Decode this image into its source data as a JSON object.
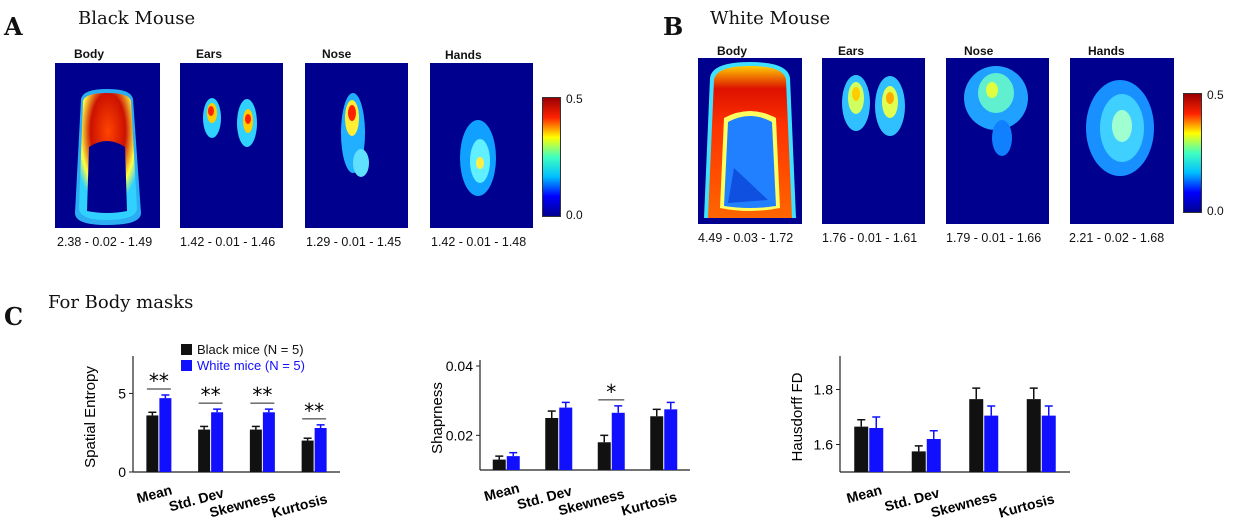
{
  "panels": {
    "A": {
      "letter": "A",
      "title": "Black Mouse",
      "maps": [
        {
          "label": "Body",
          "stats": "2.38 - 0.02 - 1.49"
        },
        {
          "label": "Ears",
          "stats": "1.42 - 0.01 - 1.46"
        },
        {
          "label": "Nose",
          "stats": "1.29 - 0.01 - 1.45"
        },
        {
          "label": "Hands",
          "stats": "1.42 - 0.01 - 1.48"
        }
      ],
      "colorbar": {
        "max": "0.5",
        "min": "0.0"
      }
    },
    "B": {
      "letter": "B",
      "title": "White Mouse",
      "maps": [
        {
          "label": "Body",
          "stats": "4.49 - 0.03 - 1.72"
        },
        {
          "label": "Ears",
          "stats": "1.76 - 0.01 - 1.61"
        },
        {
          "label": "Nose",
          "stats": "1.79 - 0.01 - 1.66"
        },
        {
          "label": "Hands",
          "stats": "2.21 - 0.02 - 1.68"
        }
      ],
      "colorbar": {
        "max": "0.5",
        "min": "0.0"
      }
    },
    "C": {
      "letter": "C",
      "title": "For Body masks"
    }
  },
  "colors": {
    "black_series": "#111111",
    "white_series": "#1010ff",
    "heat_bg": "#00008f"
  },
  "chart_data": [
    {
      "type": "bar",
      "ylabel": "Spatial Entropy",
      "categories": [
        "Mean",
        "Std. Dev",
        "Skewness",
        "Kurtosis"
      ],
      "ylim": [
        0,
        7
      ],
      "yticks": [
        "0",
        "5"
      ],
      "legend": [
        "Black mice (N = 5)",
        "White mice (N = 5)"
      ],
      "series": [
        {
          "name": "Black mice (N = 5)",
          "values": [
            3.6,
            2.7,
            2.7,
            2.0
          ],
          "errors": [
            0.2,
            0.2,
            0.2,
            0.15
          ]
        },
        {
          "name": "White mice (N = 5)",
          "values": [
            4.7,
            3.8,
            3.8,
            2.8
          ],
          "errors": [
            0.2,
            0.2,
            0.2,
            0.2
          ]
        }
      ],
      "significance": [
        "**",
        "**",
        "**",
        "**"
      ]
    },
    {
      "type": "bar",
      "ylabel": "Shaprness",
      "categories": [
        "Mean",
        "Std. Dev",
        "Skewness",
        "Kurtosis"
      ],
      "ylim": [
        0.01,
        0.04
      ],
      "yticks": [
        "0.02",
        "0.04"
      ],
      "series": [
        {
          "name": "",
          "values": [
            0.013,
            0.025,
            0.018,
            0.0255
          ],
          "errors": [
            0.001,
            0.002,
            0.002,
            0.002
          ]
        },
        {
          "name": "",
          "values": [
            0.014,
            0.028,
            0.0265,
            0.0275
          ],
          "errors": [
            0.001,
            0.0015,
            0.002,
            0.002
          ]
        }
      ],
      "significance": [
        "",
        "",
        "*",
        ""
      ]
    },
    {
      "type": "bar",
      "ylabel": "Hausdorff FD",
      "categories": [
        "Mean",
        "Std. Dev",
        "Skewness",
        "Kurtosis"
      ],
      "ylim": [
        1.5,
        1.9
      ],
      "yticks": [
        "1.6",
        "1.8"
      ],
      "series": [
        {
          "name": "",
          "values": [
            1.665,
            1.575,
            1.765,
            1.765
          ],
          "errors": [
            0.025,
            0.02,
            0.04,
            0.04
          ]
        },
        {
          "name": "",
          "values": [
            1.66,
            1.62,
            1.705,
            1.705
          ],
          "errors": [
            0.04,
            0.03,
            0.035,
            0.035
          ]
        }
      ],
      "significance": [
        "",
        "",
        "",
        ""
      ]
    }
  ]
}
